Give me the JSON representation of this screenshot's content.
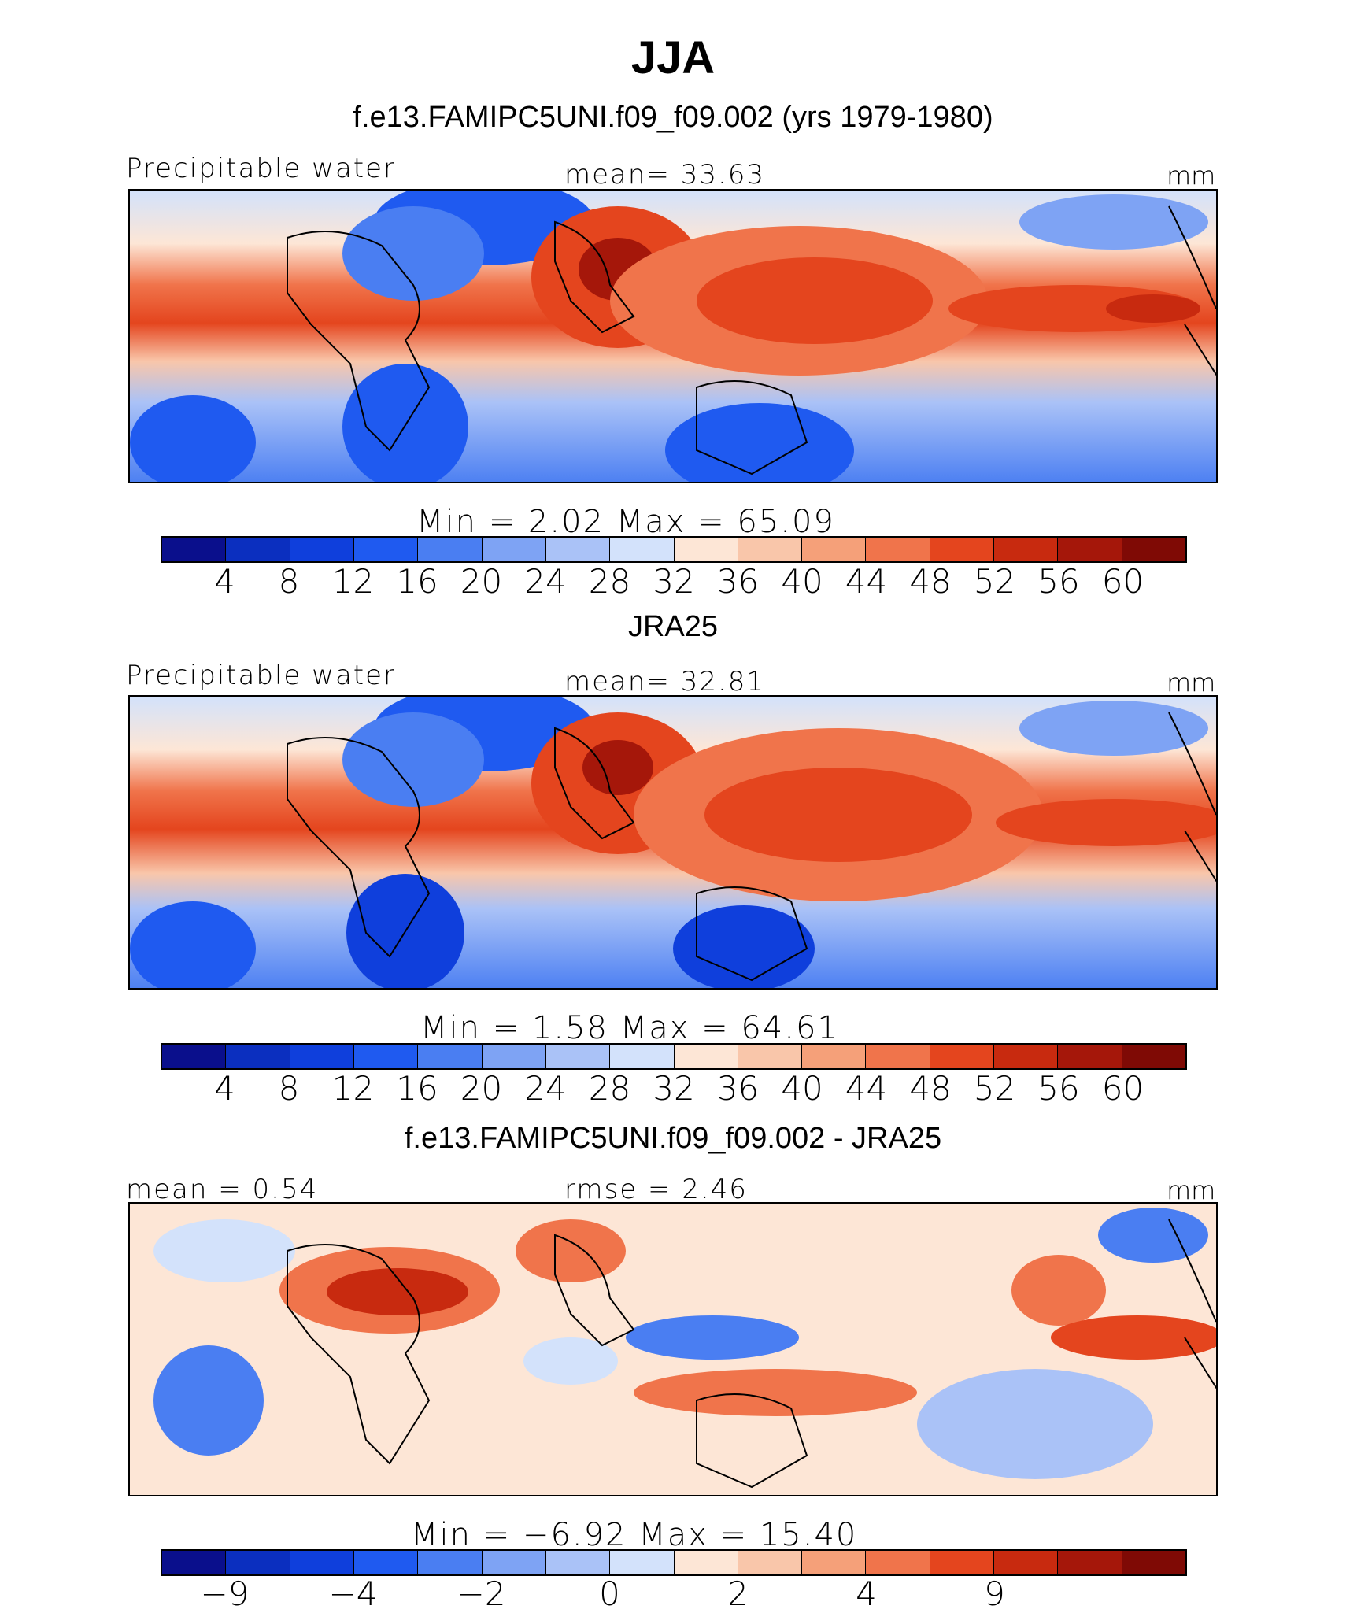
{
  "page_title": "JJA",
  "panels": [
    {
      "title": "f.e13.FAMIPC5UNI.f09_f09.002 (yrs 1979-1980)",
      "left_label": "Precipitable water",
      "center_label": "mean=   33.63",
      "right_label": "mm",
      "minmax": "Min =    2.02  Max =   65.09",
      "ticks": [
        "4",
        "8",
        "12",
        "16",
        "20",
        "24",
        "28",
        "32",
        "36",
        "40",
        "44",
        "48",
        "52",
        "56",
        "60"
      ]
    },
    {
      "title": "JRA25",
      "left_label": "Precipitable water",
      "center_label": "mean=   32.81",
      "right_label": "mm",
      "minmax": "Min =    1.58  Max =   64.61",
      "ticks": [
        "4",
        "8",
        "12",
        "16",
        "20",
        "24",
        "28",
        "32",
        "36",
        "40",
        "44",
        "48",
        "52",
        "56",
        "60"
      ]
    },
    {
      "title": "f.e13.FAMIPC5UNI.f09_f09.002 - JRA25",
      "left_label": "mean =    0.54",
      "center_label": "rmse =    2.46",
      "right_label": "mm",
      "minmax": "Min =   −6.92  Max =   15.40",
      "ticks": [
        "−9",
        "",
        "−4",
        "",
        "−2",
        "",
        "0",
        "",
        "2",
        "",
        "4",
        "",
        "9",
        ""
      ]
    }
  ],
  "colors": {
    "abs_scale": [
      "#0a0f8c",
      "#0b2fbf",
      "#0f3fdc",
      "#1f5af0",
      "#4a7ef2",
      "#7ea3f4",
      "#aac2f7",
      "#d3e2fb",
      "#fde6d6",
      "#f9c6aa",
      "#f5a079",
      "#f0744b",
      "#e4451e",
      "#c82a0f",
      "#a5170a",
      "#7f0a05"
    ],
    "diff_scale": [
      "#0a0f8c",
      "#0b2fbf",
      "#0f3fdc",
      "#1f5af0",
      "#4a7ef2",
      "#7ea3f4",
      "#aac2f7",
      "#d3e2fb",
      "#fde6d6",
      "#f9c6aa",
      "#f5a079",
      "#f0744b",
      "#e4451e",
      "#c82a0f",
      "#a5170a",
      "#7f0a05"
    ]
  }
}
